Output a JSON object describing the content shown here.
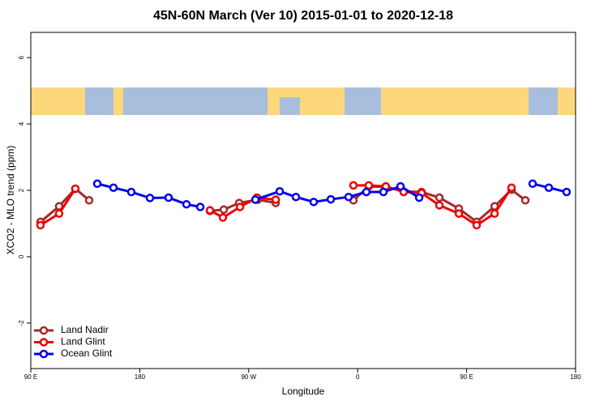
{
  "chart_data": {
    "type": "line",
    "title": "45N-60N March (Ver 10)   2015-01-01 to 2020-12-18",
    "x_label": "Longitude",
    "y_label": "XCO2 - MLO trend (ppm)",
    "xlim": [
      90,
      540
    ],
    "ylim": [
      -3.37,
      6.76
    ],
    "xticks": [
      {
        "value": 90,
        "label": "90 E"
      },
      180,
      {
        "value": 270,
        "label": "90 W"
      },
      {
        "value": 360,
        "label": "0"
      },
      {
        "value": 450,
        "label": "90 E"
      },
      {
        "value": 540,
        "label": "180"
      }
    ],
    "yticks": [
      -2,
      0,
      2,
      4,
      6
    ],
    "legend": "bottom-left",
    "series": [
      {
        "name": "Land Nadir",
        "color": "#a52a2a",
        "x": [
          98.0,
          113.4,
          126.8,
          138.2,
          190,
          238.0,
          249.4,
          262.1,
          277.5,
          292.3,
          320,
          356.5,
          369.2,
          383.3,
          398.0,
          412.8,
          427.5,
          443.6,
          458.3,
          473.1,
          487.1,
          498.5
        ],
        "values": [
          1.05,
          1.52,
          2.05,
          1.7,
          null,
          1.38,
          1.42,
          1.62,
          1.72,
          1.62,
          null,
          1.7,
          2.12,
          2.1,
          1.97,
          1.95,
          1.78,
          1.45,
          1.05,
          1.52,
          2.02,
          1.7
        ]
      },
      {
        "name": "Land Glint",
        "color": "#ee0000",
        "x": [
          98.0,
          113.4,
          126.8,
          190,
          238.0,
          248.7,
          262.8,
          276.8,
          292.3,
          320,
          356.5,
          369.2,
          383.3,
          398.0,
          412.8,
          427.5,
          443.6,
          458.3,
          473.1,
          487.1
        ],
        "values": [
          0.95,
          1.3,
          2.05,
          null,
          1.4,
          1.18,
          1.5,
          1.78,
          1.72,
          null,
          2.15,
          2.15,
          2.12,
          1.95,
          1.92,
          1.55,
          1.3,
          0.95,
          1.3,
          2.08
        ]
      },
      {
        "name": "Ocean Glint",
        "color": "#0000ee",
        "x": [
          144.9,
          158.3,
          173.0,
          188.4,
          203.8,
          218.6,
          230.0,
          250,
          275.5,
          295.6,
          309.0,
          323.7,
          337.8,
          352.5,
          367.2,
          381.3,
          395.4,
          410.8,
          460,
          504.5,
          517.9,
          532.6
        ],
        "values": [
          2.2,
          2.08,
          1.95,
          1.77,
          1.78,
          1.58,
          1.5,
          null,
          1.72,
          1.97,
          1.8,
          1.65,
          1.73,
          1.8,
          1.95,
          1.95,
          2.12,
          1.78,
          null,
          2.2,
          2.08,
          1.95
        ]
      }
    ]
  }
}
